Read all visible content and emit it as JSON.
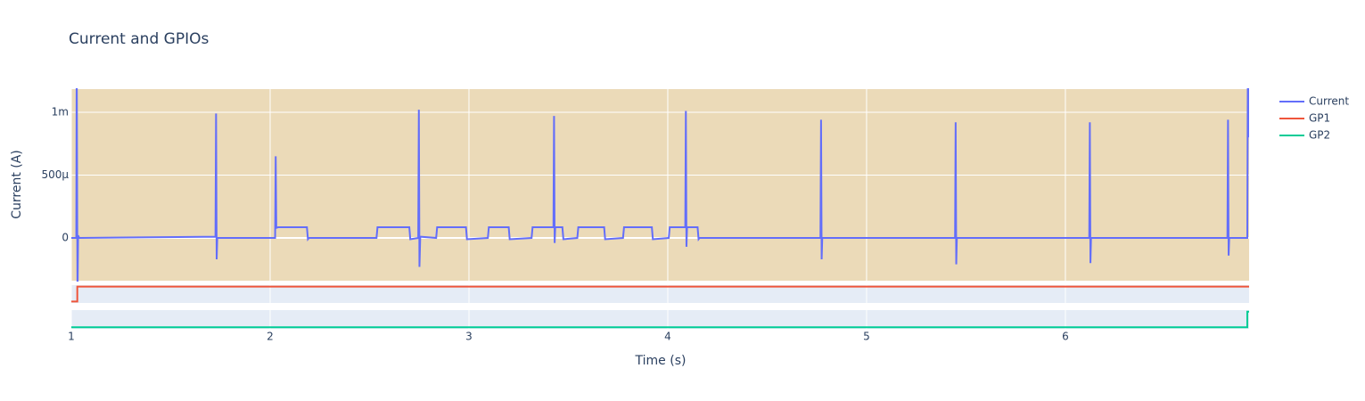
{
  "chart_data": {
    "type": "line",
    "title": "Current and GPIOs",
    "x_label": "Time (s)",
    "y_label": "Current (A)",
    "xlim": [
      1,
      6.924
    ],
    "xticks": [
      1,
      2,
      3,
      4,
      5,
      6
    ],
    "ylim": [
      -0.00034,
      0.001184
    ],
    "yticks": [
      0,
      {
        "value": 0.0005,
        "label": "500µ"
      },
      {
        "value": 0.001,
        "label": "1m"
      }
    ],
    "y2lim": [
      -0.1,
      1.1
    ],
    "y3lim": [
      -0.1,
      1.1
    ],
    "grid": true,
    "legend": "right",
    "plot_bgcolor": "#ebdab8",
    "subplot_bgcolor": "#e5ecf6",
    "series": [
      {
        "name": "Current",
        "color": "#636efa",
        "x": [
          1.0,
          1.025,
          1.027,
          1.031,
          1.034,
          1.04,
          1.725,
          1.728,
          1.731,
          1.734,
          2.025,
          2.028,
          2.031,
          2.04,
          2.185,
          2.19,
          2.195,
          2.535,
          2.54,
          2.7,
          2.705,
          2.745,
          2.748,
          2.751,
          2.755,
          2.835,
          2.84,
          2.985,
          2.99,
          3.095,
          3.1,
          3.2,
          3.205,
          3.315,
          3.32,
          3.425,
          3.428,
          3.431,
          3.434,
          3.47,
          3.475,
          3.545,
          3.55,
          3.68,
          3.685,
          3.775,
          3.78,
          3.92,
          3.925,
          4.005,
          4.01,
          4.088,
          4.091,
          4.094,
          4.097,
          4.15,
          4.155,
          4.16,
          4.768,
          4.771,
          4.774,
          4.777,
          5.445,
          5.448,
          5.451,
          5.454,
          6.12,
          6.123,
          6.126,
          6.129,
          6.815,
          6.818,
          6.821,
          6.824,
          6.915,
          6.918,
          6.924
        ],
        "values": [
          0,
          0,
          0.0015,
          -0.0005,
          2e-05,
          0,
          1e-05,
          0.00099,
          -0.00017,
          0,
          0,
          0.00065,
          8e-05,
          8.5e-05,
          8.5e-05,
          -1e-05,
          0,
          0,
          8.5e-05,
          8.5e-05,
          -1e-05,
          0,
          0.00102,
          -0.00023,
          1e-05,
          0,
          8.5e-05,
          8.5e-05,
          -1e-05,
          0,
          8.5e-05,
          8.5e-05,
          -1e-05,
          0,
          8.5e-05,
          8.5e-05,
          0.00097,
          -4e-05,
          8.5e-05,
          8.5e-05,
          -1e-05,
          0,
          8.5e-05,
          8.5e-05,
          -1e-05,
          0,
          8.5e-05,
          8.5e-05,
          -1e-05,
          0,
          8.5e-05,
          8.5e-05,
          0.00101,
          -7e-05,
          8.5e-05,
          8.5e-05,
          -1e-05,
          0,
          0,
          0.00094,
          -0.00017,
          0,
          0,
          0.00092,
          -0.00021,
          0,
          0,
          0.00092,
          -0.0002,
          0,
          0,
          0.00094,
          -0.00014,
          0,
          0,
          0.0015,
          0.0008
        ]
      },
      {
        "name": "GP1",
        "color": "#EF553B",
        "axis": "y2",
        "x": [
          1,
          1.03,
          1.03,
          6.924
        ],
        "values": [
          0,
          0,
          1,
          1
        ]
      },
      {
        "name": "GP2",
        "color": "#00cc96",
        "axis": "y3",
        "x": [
          1,
          6.915,
          6.915,
          6.924
        ],
        "values": [
          0,
          0,
          1,
          1
        ]
      }
    ]
  }
}
